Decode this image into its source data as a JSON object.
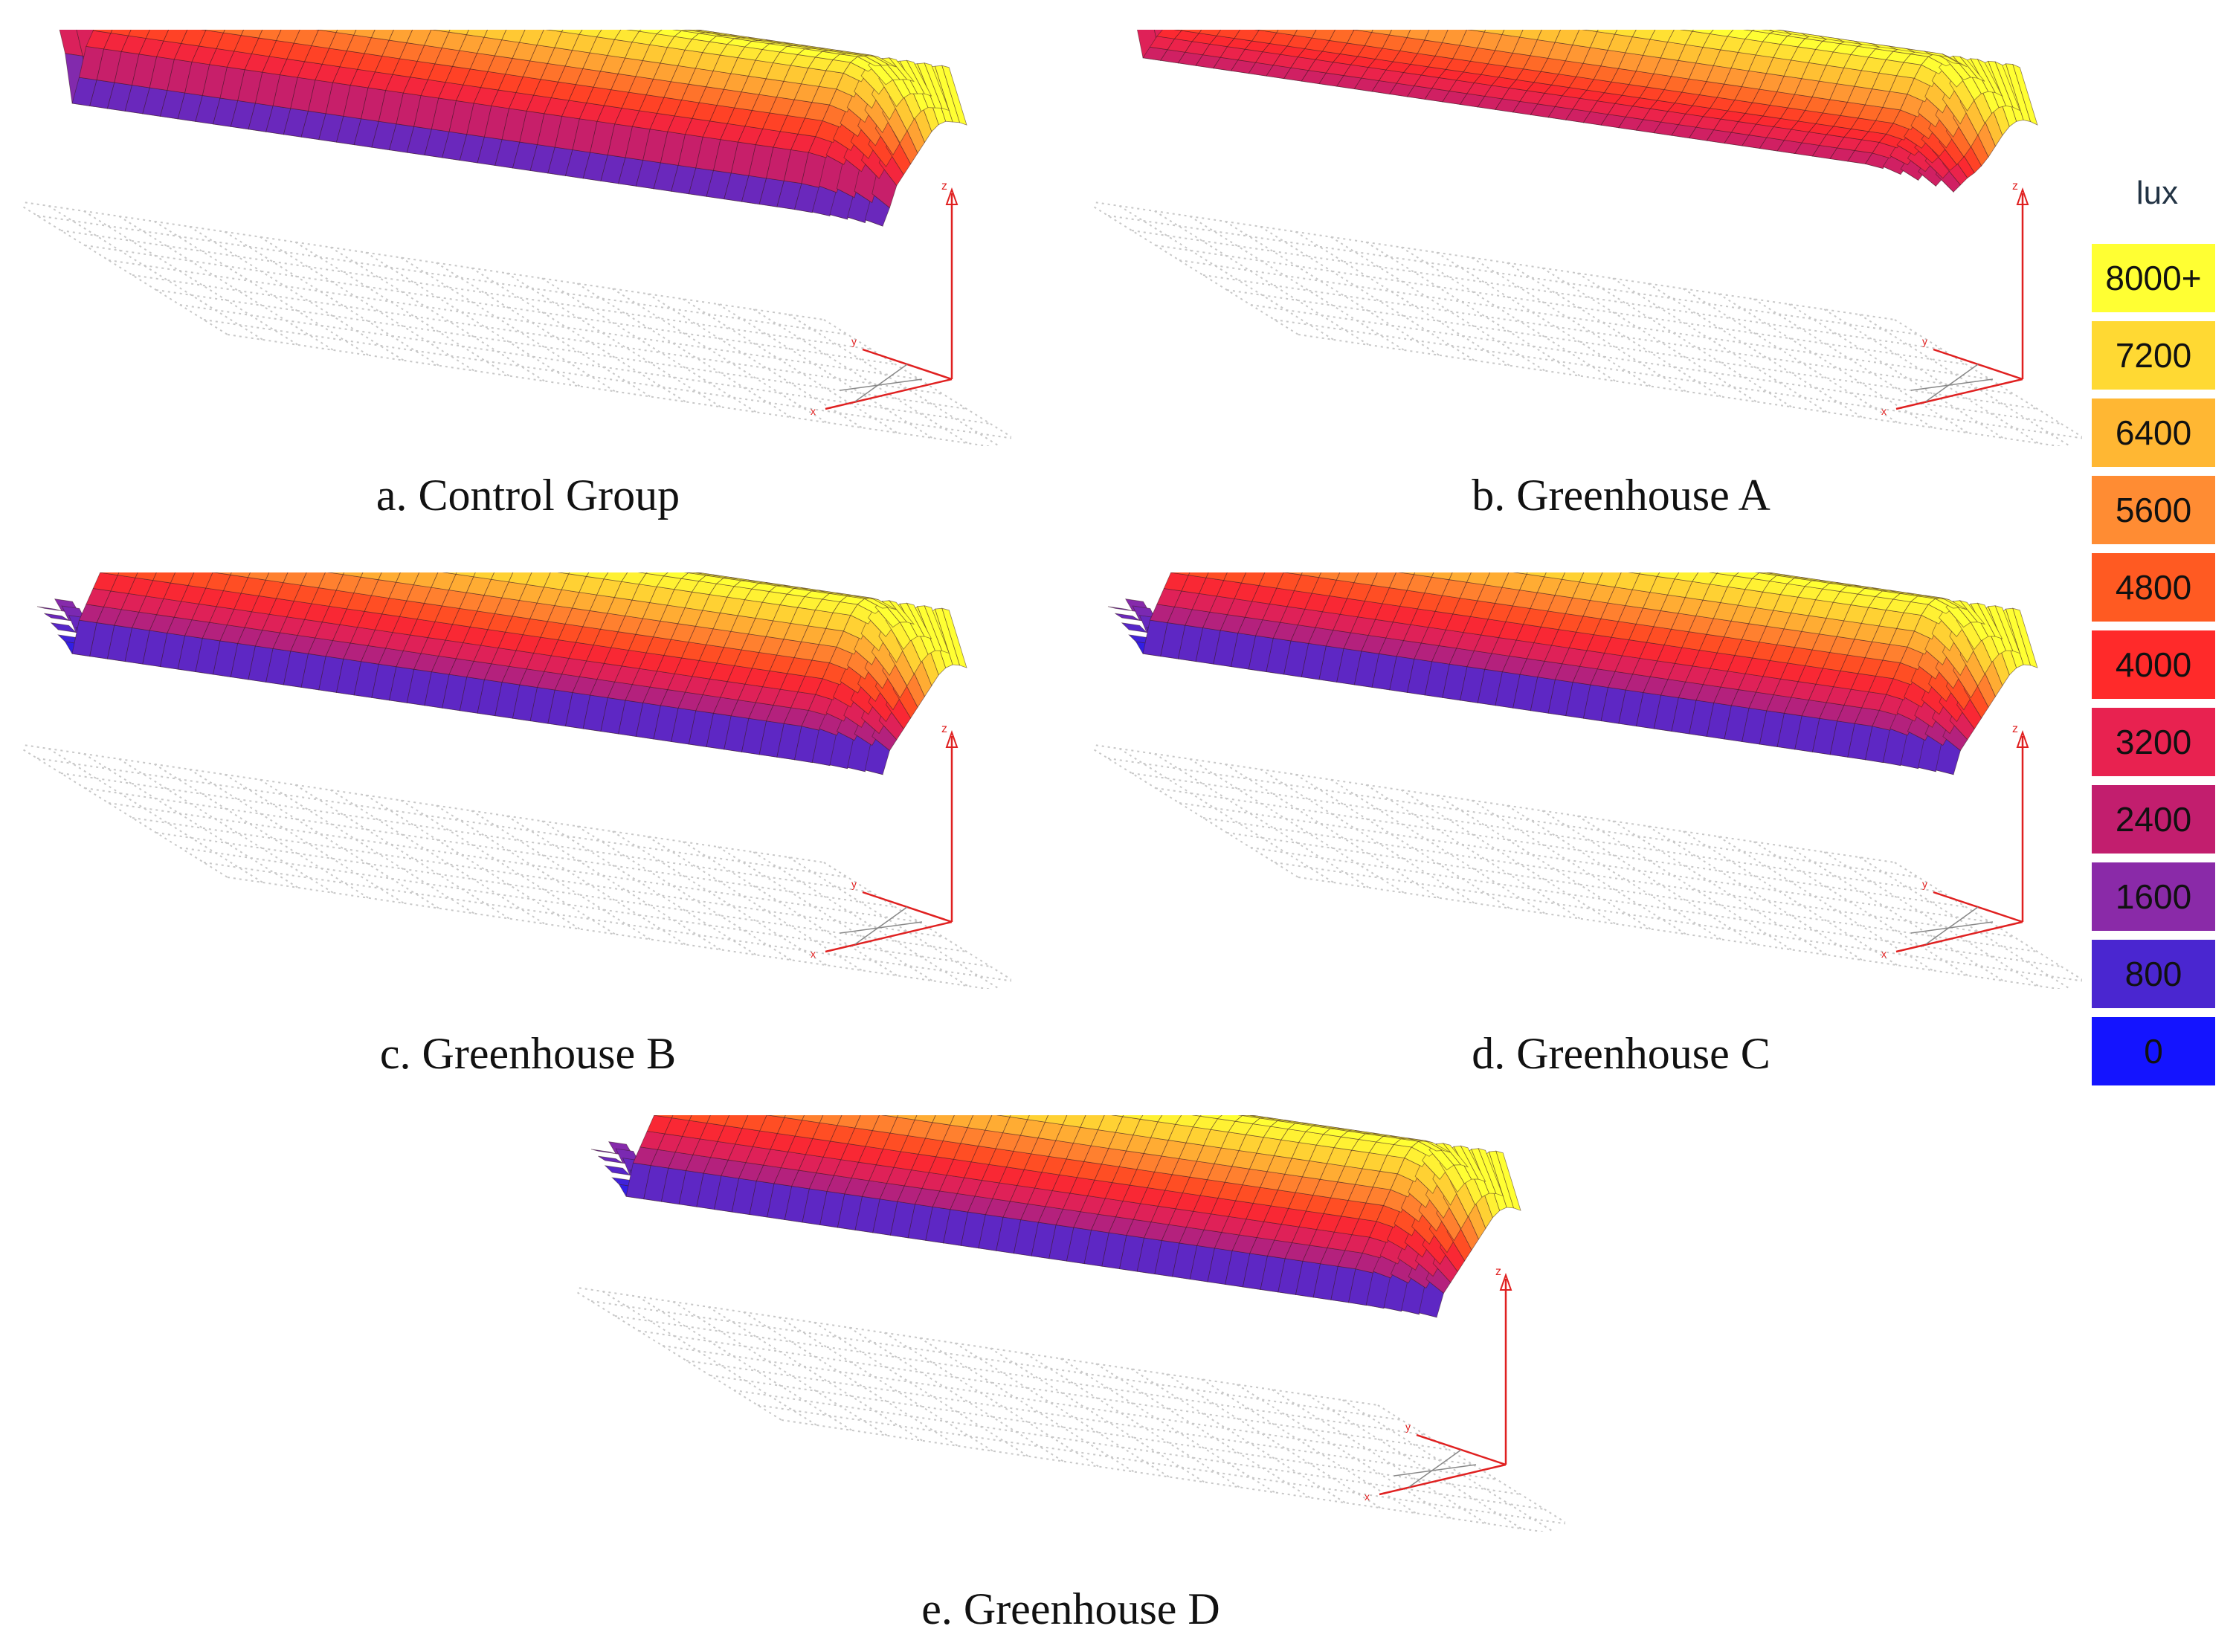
{
  "chart_data": [
    {
      "type": "surface3d",
      "title": "a. Control Group",
      "profile": "control"
    },
    {
      "type": "surface3d",
      "title": "b. Greenhouse A",
      "profile": "greenhouseA"
    },
    {
      "type": "surface3d",
      "title": "c. Greenhouse B",
      "profile": "greenhouseBCD"
    },
    {
      "type": "surface3d",
      "title": "d. Greenhouse C",
      "profile": "greenhouseBCD"
    },
    {
      "type": "surface3d",
      "title": "e. Greenhouse D",
      "profile": "greenhouseBCD"
    }
  ],
  "axis_labels": {
    "z": "z",
    "x": "x",
    "y": "y"
  },
  "legend": {
    "title": "lux",
    "items": [
      {
        "label": "8000+",
        "value": 8000,
        "color": "#ffff33"
      },
      {
        "label": "7200",
        "value": 7200,
        "color": "#ffd933"
      },
      {
        "label": "6400",
        "value": 6400,
        "color": "#ffb733"
      },
      {
        "label": "5600",
        "value": 5600,
        "color": "#ff8c33"
      },
      {
        "label": "4800",
        "value": 4800,
        "color": "#ff5a22"
      },
      {
        "label": "4000",
        "value": 4000,
        "color": "#ff2a2a"
      },
      {
        "label": "3200",
        "value": 3200,
        "color": "#e82250"
      },
      {
        "label": "2400",
        "value": 2400,
        "color": "#c21e6e"
      },
      {
        "label": "1600",
        "value": 1600,
        "color": "#8a2aa8"
      },
      {
        "label": "800",
        "value": 800,
        "color": "#4a26d0"
      },
      {
        "label": "0",
        "value": 0,
        "color": "#1414ff"
      }
    ]
  }
}
